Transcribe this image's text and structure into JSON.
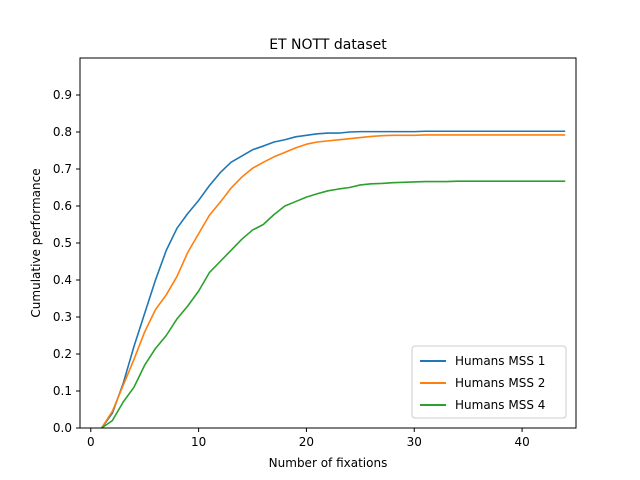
{
  "chart_data": {
    "type": "line",
    "title": "ET NOTT dataset",
    "xlabel": "Number of fixations",
    "ylabel": "Cumulative performance",
    "xlim": [
      -1,
      45
    ],
    "ylim": [
      0,
      1.0
    ],
    "x_ticks": [
      0,
      10,
      20,
      30,
      40
    ],
    "y_ticks": [
      0.0,
      0.1,
      0.2,
      0.3,
      0.4,
      0.5,
      0.6,
      0.7,
      0.8,
      0.9
    ],
    "grid": false,
    "legend_position": "lower-right",
    "x": [
      1,
      2,
      3,
      4,
      5,
      6,
      7,
      8,
      9,
      10,
      11,
      12,
      13,
      14,
      15,
      16,
      17,
      18,
      19,
      20,
      21,
      22,
      23,
      24,
      25,
      26,
      27,
      28,
      29,
      30,
      31,
      32,
      33,
      34,
      35,
      36,
      37,
      38,
      39,
      40,
      41,
      42,
      43,
      44
    ],
    "series": [
      {
        "name": "Humans MSS 1",
        "color": "#1f77b4",
        "values": [
          0.0,
          0.04,
          0.12,
          0.22,
          0.31,
          0.4,
          0.48,
          0.54,
          0.58,
          0.615,
          0.655,
          0.69,
          0.718,
          0.735,
          0.752,
          0.762,
          0.773,
          0.779,
          0.787,
          0.791,
          0.795,
          0.797,
          0.797,
          0.8,
          0.801,
          0.801,
          0.801,
          0.801,
          0.801,
          0.801,
          0.802,
          0.802,
          0.802,
          0.802,
          0.802,
          0.802,
          0.802,
          0.802,
          0.802,
          0.802,
          0.802,
          0.802,
          0.802,
          0.802
        ]
      },
      {
        "name": "Humans MSS 2",
        "color": "#ff7f0e",
        "values": [
          0.0,
          0.045,
          0.115,
          0.185,
          0.26,
          0.32,
          0.36,
          0.41,
          0.475,
          0.525,
          0.575,
          0.61,
          0.648,
          0.678,
          0.702,
          0.718,
          0.733,
          0.745,
          0.757,
          0.767,
          0.773,
          0.776,
          0.779,
          0.782,
          0.785,
          0.788,
          0.79,
          0.791,
          0.791,
          0.791,
          0.792,
          0.792,
          0.792,
          0.792,
          0.792,
          0.792,
          0.792,
          0.792,
          0.792,
          0.792,
          0.792,
          0.792,
          0.792,
          0.792
        ]
      },
      {
        "name": "Humans MSS 4",
        "color": "#2ca02c",
        "values": [
          0.0,
          0.02,
          0.07,
          0.11,
          0.17,
          0.215,
          0.25,
          0.295,
          0.33,
          0.37,
          0.42,
          0.45,
          0.48,
          0.51,
          0.535,
          0.55,
          0.577,
          0.6,
          0.612,
          0.624,
          0.633,
          0.641,
          0.646,
          0.65,
          0.657,
          0.66,
          0.661,
          0.663,
          0.664,
          0.665,
          0.666,
          0.666,
          0.666,
          0.667,
          0.667,
          0.667,
          0.667,
          0.667,
          0.667,
          0.667,
          0.667,
          0.667,
          0.667,
          0.667
        ]
      }
    ]
  }
}
